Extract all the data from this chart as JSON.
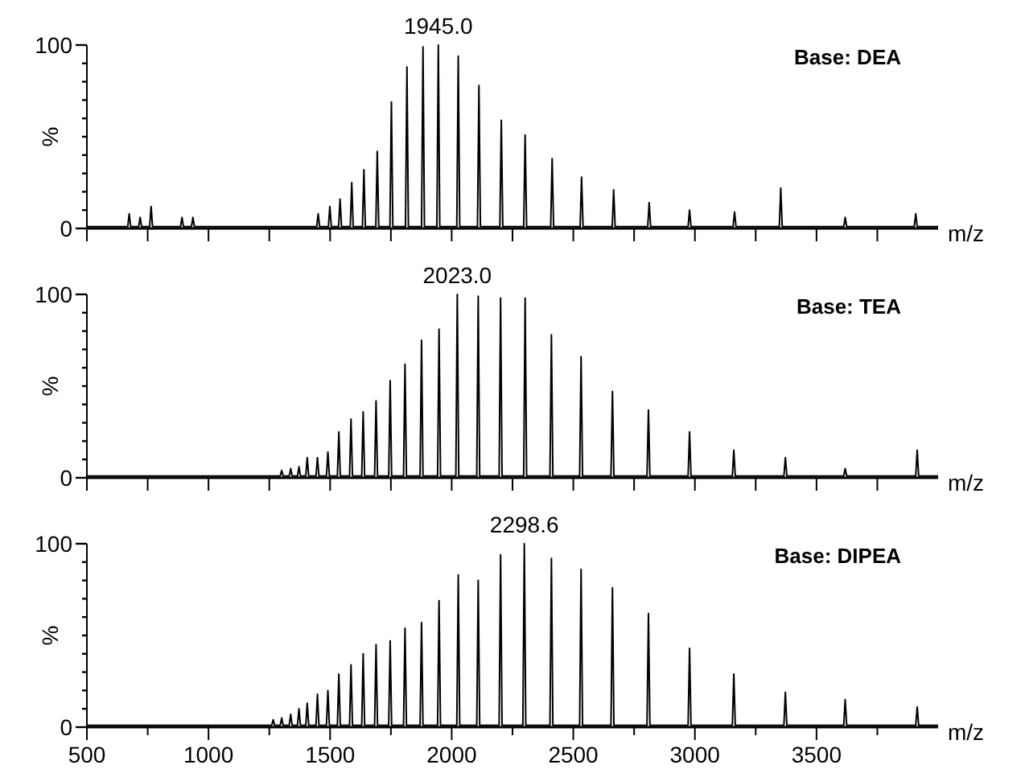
{
  "chart_data": [
    {
      "type": "line",
      "ylabel": "%",
      "xlabel": "m/z",
      "color": "#000000",
      "tick_labels": "y",
      "xlim": [
        500,
        4000
      ],
      "ylim": [
        0,
        100
      ],
      "xticks": [
        500,
        750,
        1000,
        1250,
        1500,
        1750,
        2000,
        2250,
        2500,
        2750,
        3000,
        3250,
        3500,
        3750
      ],
      "yticks": [
        {
          "value": 0,
          "label": "0"
        },
        {
          "value": 10,
          "label": null
        },
        {
          "value": 20,
          "label": null
        },
        {
          "value": 30,
          "label": null
        },
        {
          "value": 40,
          "label": null
        },
        {
          "value": 50,
          "label": null
        },
        {
          "value": 60,
          "label": null
        },
        {
          "value": 70,
          "label": null
        },
        {
          "value": 80,
          "label": null
        },
        {
          "value": 90,
          "label": null
        },
        {
          "value": 100,
          "label": "100"
        }
      ],
      "x": [
        500,
        668,
        674,
        680,
        713,
        719,
        725,
        758,
        764,
        770,
        885,
        891,
        897,
        930,
        936,
        942,
        1445,
        1451,
        1457,
        1493,
        1499,
        1505,
        1535,
        1541,
        1547,
        1583,
        1589,
        1595,
        1633,
        1639,
        1645,
        1688,
        1694,
        1700,
        1746,
        1752,
        1758,
        1810,
        1816,
        1822,
        1876,
        1882,
        1888,
        1939,
        1945,
        1951,
        2021,
        2027,
        2033,
        2106,
        2112,
        2118,
        2198,
        2204,
        2210,
        2296,
        2302,
        2308,
        2407,
        2413,
        2419,
        2528,
        2534,
        2540,
        2660,
        2666,
        2672,
        2806,
        2812,
        2818,
        2972,
        2978,
        2984,
        3157,
        3163,
        3169,
        3347,
        3353,
        3359,
        3612,
        3618,
        3624,
        3902,
        3908,
        3914,
        4000
      ],
      "values": [
        1,
        1,
        8,
        1,
        1,
        6,
        1,
        1,
        12,
        1,
        1,
        6,
        1,
        1,
        6,
        1,
        1,
        8,
        1,
        1,
        12,
        1,
        1,
        16,
        1,
        1,
        25,
        1,
        1,
        32,
        1,
        1,
        42,
        1,
        1,
        69,
        1,
        1,
        88,
        1,
        1,
        99,
        1,
        1,
        100,
        1,
        1,
        94,
        1,
        1,
        78,
        1,
        1,
        59,
        1,
        1,
        51,
        1,
        1,
        38,
        1,
        1,
        28,
        1,
        1,
        21,
        1,
        1,
        14,
        1,
        1,
        10,
        1,
        1,
        9,
        1,
        1,
        22,
        1,
        1,
        6,
        1,
        1,
        8,
        1,
        1
      ],
      "annotations": [
        {
          "text": "1945.0",
          "x": 1945,
          "y": 100
        },
        "Base: DEA"
      ]
    },
    {
      "type": "line",
      "ylabel": "%",
      "xlabel": "m/z",
      "color": "#000000",
      "tick_labels": "y",
      "xlim": [
        500,
        4000
      ],
      "ylim": [
        0,
        100
      ],
      "xticks": [
        500,
        750,
        1000,
        1250,
        1500,
        1750,
        2000,
        2250,
        2500,
        2750,
        3000,
        3250,
        3500,
        3750
      ],
      "yticks": [
        {
          "value": 0,
          "label": "0"
        },
        {
          "value": 10,
          "label": null
        },
        {
          "value": 20,
          "label": null
        },
        {
          "value": 30,
          "label": null
        },
        {
          "value": 40,
          "label": null
        },
        {
          "value": 50,
          "label": null
        },
        {
          "value": 60,
          "label": null
        },
        {
          "value": 70,
          "label": null
        },
        {
          "value": 80,
          "label": null
        },
        {
          "value": 90,
          "label": null
        },
        {
          "value": 100,
          "label": "100"
        }
      ],
      "x": [
        500,
        1295,
        1301,
        1307,
        1332,
        1338,
        1344,
        1366,
        1372,
        1378,
        1400,
        1406,
        1412,
        1442,
        1448,
        1454,
        1485,
        1491,
        1497,
        1530,
        1536,
        1542,
        1580,
        1586,
        1592,
        1630,
        1636,
        1642,
        1683,
        1689,
        1695,
        1741,
        1747,
        1753,
        1802,
        1808,
        1814,
        1870,
        1876,
        1882,
        1942,
        1948,
        1954,
        2017,
        2023,
        2029,
        2103,
        2109,
        2115,
        2195,
        2201,
        2207,
        2296,
        2302,
        2308,
        2404,
        2410,
        2416,
        2526,
        2532,
        2538,
        2655,
        2661,
        2667,
        2803,
        2809,
        2815,
        2972,
        2978,
        2984,
        3154,
        3160,
        3166,
        3366,
        3372,
        3378,
        3612,
        3618,
        3624,
        3908,
        3914,
        3920,
        4000
      ],
      "values": [
        1,
        1,
        4,
        1,
        1,
        5,
        1,
        1,
        6,
        1,
        1,
        11,
        1,
        1,
        11,
        1,
        1,
        14,
        1,
        1,
        25,
        1,
        1,
        32,
        1,
        1,
        36,
        1,
        1,
        42,
        1,
        1,
        53,
        1,
        1,
        62,
        1,
        1,
        75,
        1,
        1,
        81,
        1,
        1,
        100,
        1,
        1,
        99,
        1,
        1,
        98,
        1,
        1,
        98,
        1,
        1,
        78,
        1,
        1,
        66,
        1,
        1,
        47,
        1,
        1,
        37,
        1,
        1,
        25,
        1,
        1,
        15,
        1,
        1,
        11,
        1,
        1,
        5,
        1,
        1,
        15,
        1,
        1
      ],
      "annotations": [
        {
          "text": "2023.0",
          "x": 2023,
          "y": 100
        },
        "Base: TEA"
      ]
    },
    {
      "type": "line",
      "xlabel": "m/z",
      "ylabel": "%",
      "color": "#000000",
      "xlim": [
        500,
        4000
      ],
      "ylim": [
        0,
        100
      ],
      "xticks": [
        500,
        {
          "value": 750,
          "label": null
        },
        1000,
        {
          "value": 1250,
          "label": null
        },
        1500,
        {
          "value": 1750,
          "label": null
        },
        2000,
        {
          "value": 2250,
          "label": null
        },
        2500,
        {
          "value": 2750,
          "label": null
        },
        3000,
        {
          "value": 3250,
          "label": null
        },
        3500,
        {
          "value": 3750,
          "label": null
        }
      ],
      "yticks": [
        {
          "value": 0,
          "label": "0"
        },
        {
          "value": 10,
          "label": null
        },
        {
          "value": 20,
          "label": null
        },
        {
          "value": 30,
          "label": null
        },
        {
          "value": 40,
          "label": null
        },
        {
          "value": 50,
          "label": null
        },
        {
          "value": 60,
          "label": null
        },
        {
          "value": 70,
          "label": null
        },
        {
          "value": 80,
          "label": null
        },
        {
          "value": 90,
          "label": null
        },
        {
          "value": 100,
          "label": "100"
        }
      ],
      "x": [
        500,
        1260,
        1266,
        1272,
        1295,
        1301,
        1307,
        1332,
        1338,
        1344,
        1366,
        1372,
        1378,
        1400,
        1406,
        1412,
        1442,
        1448,
        1454,
        1485,
        1491,
        1497,
        1530,
        1536,
        1542,
        1580,
        1586,
        1592,
        1630,
        1636,
        1642,
        1683,
        1689,
        1695,
        1741,
        1747,
        1753,
        1802,
        1808,
        1814,
        1870,
        1876,
        1882,
        1942,
        1948,
        1954,
        2021,
        2027,
        2033,
        2103,
        2109,
        2115,
        2195,
        2201,
        2207,
        2292.6,
        2298.6,
        2304.6,
        2404,
        2410,
        2416,
        2526,
        2532,
        2538,
        2655,
        2661,
        2667,
        2803,
        2809,
        2815,
        2972,
        2978,
        2984,
        3154,
        3160,
        3166,
        3366,
        3372,
        3378,
        3612,
        3618,
        3624,
        3908,
        3914,
        3920,
        4000
      ],
      "values": [
        1,
        1,
        4,
        1,
        1,
        5,
        1,
        1,
        7,
        1,
        1,
        10,
        1,
        1,
        13,
        1,
        1,
        18,
        1,
        1,
        20,
        1,
        1,
        29,
        1,
        1,
        34,
        1,
        1,
        40,
        1,
        1,
        45,
        1,
        1,
        47,
        1,
        1,
        54,
        1,
        1,
        57,
        1,
        1,
        69,
        1,
        1,
        83,
        1,
        1,
        80,
        1,
        1,
        94,
        1,
        1,
        100,
        1,
        1,
        92,
        1,
        1,
        86,
        1,
        1,
        76,
        1,
        1,
        62,
        1,
        1,
        43,
        1,
        1,
        29,
        1,
        1,
        19,
        1,
        1,
        15,
        1,
        1,
        11,
        1,
        1
      ],
      "annotations": [
        {
          "text": "2298.6",
          "x": 2298.6,
          "y": 100
        },
        "Base: DIPEA"
      ]
    }
  ]
}
